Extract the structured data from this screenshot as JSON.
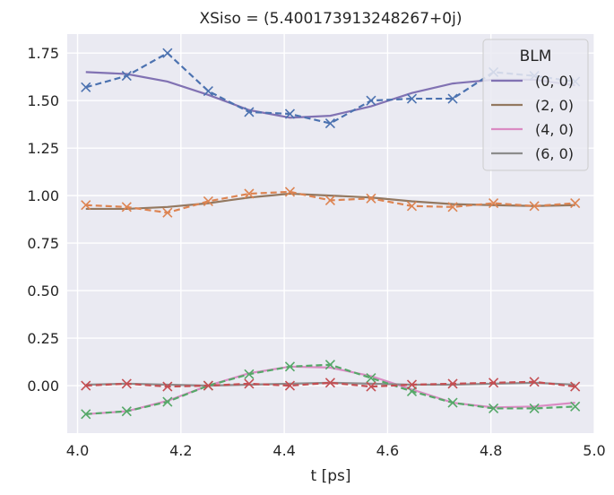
{
  "chart_data": {
    "type": "line",
    "title": "XSiso = (5.400173913248267+0j)",
    "xlabel": "t [ps]",
    "ylabel": "",
    "xlim": [
      3.98,
      5.0
    ],
    "ylim": [
      -0.25,
      1.85
    ],
    "xticks": [
      "4.0",
      "4.2",
      "4.4",
      "4.6",
      "4.8",
      "5.0"
    ],
    "yticks": [
      "0.00",
      "0.25",
      "0.50",
      "0.75",
      "1.00",
      "1.25",
      "1.50",
      "1.75"
    ],
    "grid": true,
    "legend": {
      "title": "BLM",
      "placement": "top-right"
    },
    "x": [
      4.016,
      4.095,
      4.174,
      4.253,
      4.332,
      4.411,
      4.489,
      4.568,
      4.647,
      4.726,
      4.805,
      4.884,
      4.963
    ],
    "series": [
      {
        "name": "(0, 0)",
        "style": "solid",
        "color": "#8172b3",
        "values": [
          1.65,
          1.64,
          1.6,
          1.53,
          1.45,
          1.41,
          1.42,
          1.47,
          1.54,
          1.59,
          1.61,
          1.61,
          1.58
        ]
      },
      {
        "name": "(2, 0)",
        "style": "solid",
        "color": "#937860",
        "values": [
          0.93,
          0.93,
          0.94,
          0.96,
          0.99,
          1.01,
          1.0,
          0.99,
          0.97,
          0.955,
          0.95,
          0.945,
          0.95
        ]
      },
      {
        "name": "(4, 0)",
        "style": "solid",
        "color": "#da8bc3",
        "values": [
          -0.15,
          -0.135,
          -0.08,
          0.0,
          0.065,
          0.1,
          0.095,
          0.05,
          -0.02,
          -0.09,
          -0.115,
          -0.11,
          -0.09
        ]
      },
      {
        "name": "(6, 0)",
        "style": "solid",
        "color": "#8c8c8c",
        "values": [
          0.005,
          0.01,
          0.005,
          0.0,
          0.005,
          0.01,
          0.015,
          0.01,
          0.005,
          0.005,
          0.01,
          0.015,
          0.005
        ]
      },
      {
        "name": "",
        "style": "dashed",
        "color": "#4c72b0",
        "values": [
          1.57,
          1.63,
          1.75,
          1.55,
          1.44,
          1.43,
          1.38,
          1.5,
          1.51,
          1.51,
          1.65,
          1.63,
          1.6
        ]
      },
      {
        "name": "",
        "style": "dashed",
        "color": "#dd8452",
        "values": [
          0.95,
          0.94,
          0.91,
          0.97,
          1.01,
          1.02,
          0.975,
          0.985,
          0.945,
          0.94,
          0.96,
          0.945,
          0.96
        ]
      },
      {
        "name": "",
        "style": "dashed",
        "color": "#55a868",
        "values": [
          -0.15,
          -0.135,
          -0.085,
          0.0,
          0.06,
          0.1,
          0.11,
          0.04,
          -0.03,
          -0.09,
          -0.12,
          -0.12,
          -0.11
        ]
      },
      {
        "name": "",
        "style": "dashed",
        "color": "#c44e52",
        "values": [
          0.0,
          0.01,
          -0.005,
          0.0,
          0.01,
          0.0,
          0.015,
          -0.005,
          0.005,
          0.01,
          0.015,
          0.02,
          -0.005
        ]
      }
    ]
  }
}
